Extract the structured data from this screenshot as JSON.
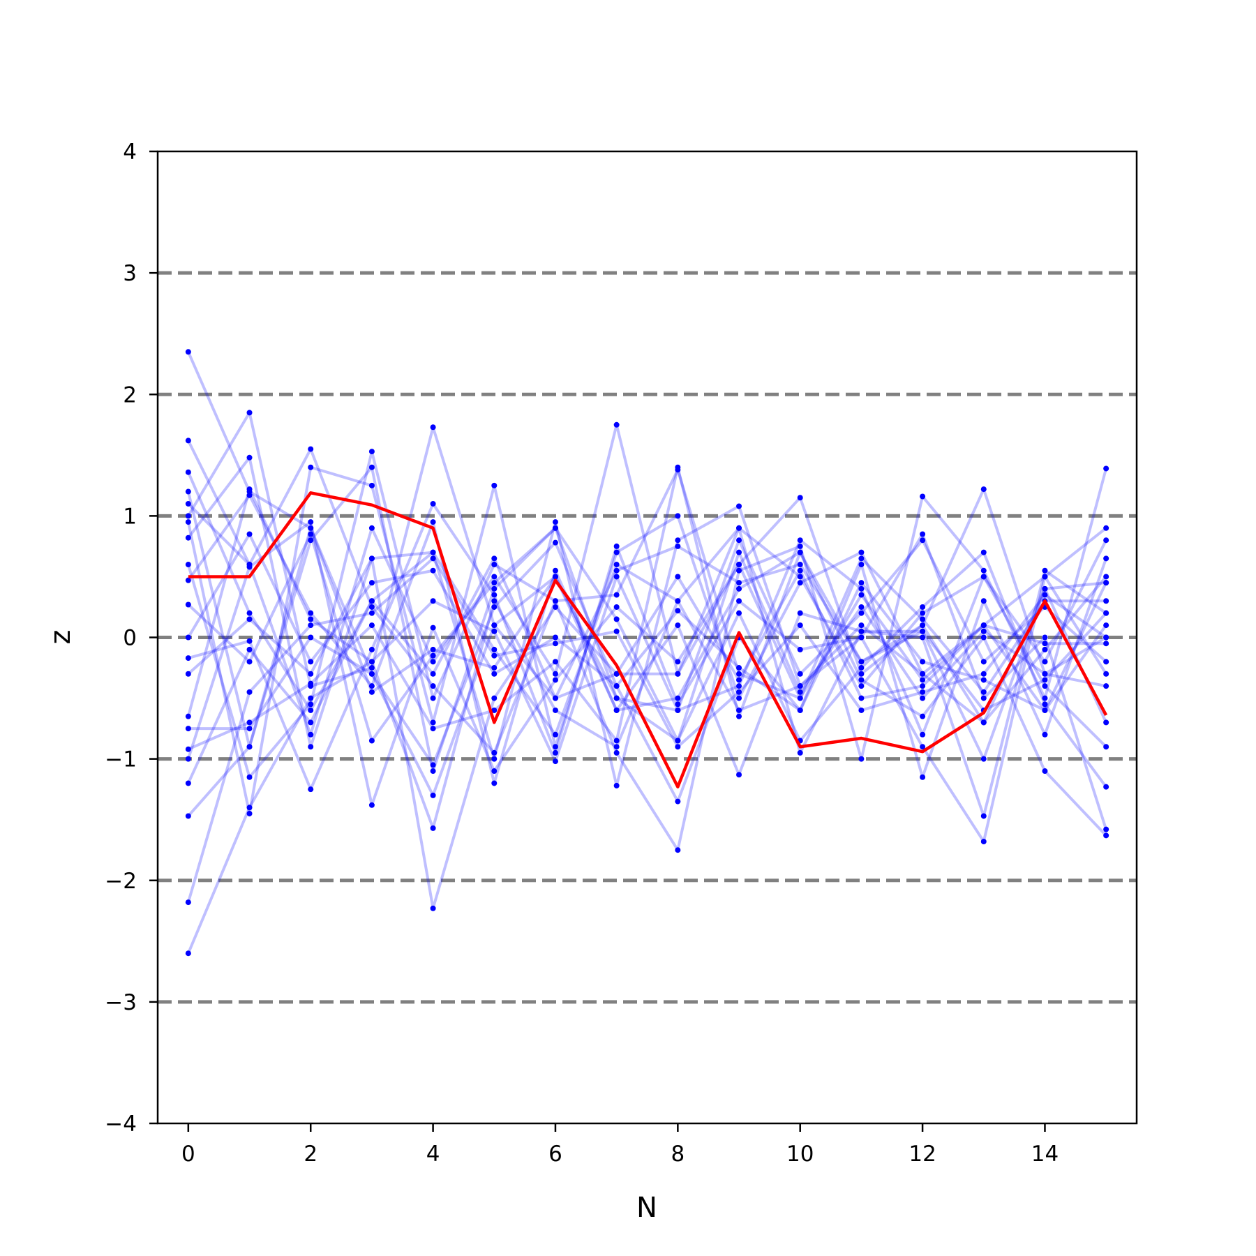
{
  "chart_data": {
    "type": "line",
    "title": "",
    "xlabel": "N",
    "ylabel": "z",
    "xlim": [
      -0.5,
      15.5
    ],
    "ylim": [
      -4,
      4
    ],
    "x_ticks": [
      0,
      2,
      4,
      6,
      8,
      10,
      12,
      14
    ],
    "y_ticks": [
      -4,
      -3,
      -2,
      -1,
      0,
      1,
      2,
      3,
      4
    ],
    "y_tick_labels": [
      "−4",
      "−3",
      "−2",
      "−1",
      "0",
      "1",
      "2",
      "3",
      "4"
    ],
    "reference_lines": [
      -3,
      -2,
      -1,
      0,
      1,
      2,
      3
    ],
    "grid": false,
    "legend": "none",
    "colors": {
      "samples": "#0000ff",
      "highlight": "#ff0000",
      "reference": "#808080"
    },
    "x": [
      0,
      1,
      2,
      3,
      4,
      5,
      6,
      7,
      8,
      9,
      10,
      11,
      12,
      13,
      14,
      15
    ],
    "highlight_series": {
      "values": [
        0.5,
        0.5,
        1.19,
        1.09,
        0.9,
        -0.7,
        0.47,
        -0.23,
        -1.23,
        0.04,
        -0.9,
        -0.83,
        -0.94,
        -0.62,
        0.3,
        -0.64
      ]
    },
    "series": [
      {
        "values": [
          2.35,
          1.2,
          0.9,
          -0.3,
          -1.3,
          0.1,
          0.5,
          -0.6,
          -0.5,
          0.4,
          0.7,
          -0.2,
          0.1,
          -0.7,
          -0.1,
          0.5
        ]
      },
      {
        "values": [
          1.62,
          0.6,
          -0.8,
          0.9,
          -0.2,
          0.5,
          -0.3,
          1.75,
          -0.3,
          0.9,
          0.5,
          -0.4,
          0.2,
          0.5,
          -0.2,
          0.8
        ]
      },
      {
        "values": [
          1.36,
          0.2,
          -0.6,
          0.3,
          0.7,
          -0.1,
          -0.8,
          0.6,
          0.3,
          -0.6,
          -0.4,
          0.1,
          -0.3,
          0.1,
          0.5,
          -0.3
        ]
      },
      {
        "values": [
          1.2,
          -0.9,
          0.8,
          1.4,
          -1.1,
          0.4,
          0.9,
          -0.5,
          -0.6,
          -0.4,
          0.8,
          0.4,
          -0.8,
          0.5,
          -0.4,
          -0.9
        ]
      },
      {
        "values": [
          1.1,
          0.6,
          1.55,
          0.25,
          -0.4,
          -0.95,
          0.3,
          0.35,
          1.38,
          -0.3,
          -0.5,
          0.65,
          0.15,
          -0.45,
          0.3,
          0.3
        ]
      },
      {
        "values": [
          1.0,
          1.85,
          -0.4,
          -0.25,
          1.73,
          0.1,
          -0.5,
          -0.3,
          -0.3,
          0.6,
          1.15,
          -0.3,
          0.1,
          1.22,
          -0.3,
          0.0
        ]
      },
      {
        "values": [
          0.95,
          -1.45,
          1.4,
          1.25,
          -0.7,
          1.25,
          -0.9,
          0.7,
          1.0,
          -0.5,
          0.45,
          0.7,
          -0.3,
          -0.7,
          0.4,
          0.45
        ]
      },
      {
        "values": [
          0.82,
          1.48,
          -0.9,
          0.65,
          0.7,
          -1.0,
          0.95,
          -1.22,
          0.8,
          1.08,
          -0.4,
          0.0,
          0.85,
          -0.5,
          0.0,
          -1.58
        ]
      },
      {
        "values": [
          0.6,
          -1.15,
          -0.55,
          1.53,
          -0.5,
          0.6,
          0.3,
          -0.95,
          -1.75,
          0.55,
          0.75,
          -1.0,
          1.16,
          0.55,
          -0.5,
          1.39
        ]
      },
      {
        "values": [
          0.47,
          1.17,
          0.2,
          -0.4,
          0.95,
          -1.2,
          0.55,
          -0.6,
          0.1,
          -1.13,
          0.2,
          0.05,
          0.0,
          -1.47,
          0.55,
          0.2
        ]
      },
      {
        "values": [
          0.27,
          -0.2,
          0.85,
          -0.85,
          -0.15,
          0.45,
          0.9,
          0.15,
          -0.85,
          0.7,
          -0.45,
          0.25,
          -0.5,
          0.05,
          -0.3,
          -0.4
        ]
      },
      {
        "values": [
          0.0,
          0.85,
          -0.2,
          0.45,
          0.55,
          -0.3,
          0.0,
          -0.4,
          0.22,
          -0.25,
          -0.6,
          0.6,
          -1.15,
          0.3,
          -0.8,
          0.65
        ]
      },
      {
        "values": [
          -0.17,
          -0.03,
          -1.25,
          -0.1,
          1.1,
          0.35,
          -0.95,
          0.75,
          -0.55,
          0.3,
          -0.1,
          0.0,
          -0.9,
          -1.68,
          0.5,
          0.9
        ]
      },
      {
        "values": [
          -0.3,
          0.15,
          -0.3,
          0.65,
          -2.23,
          -0.5,
          0.25,
          -0.3,
          0.5,
          -0.35,
          0.55,
          -0.5,
          -0.4,
          0.1,
          -0.6,
          0.45
        ]
      },
      {
        "values": [
          -0.65,
          1.22,
          0.15,
          -0.2,
          0.3,
          0.05,
          -1.02,
          0.5,
          -0.6,
          0.8,
          -0.3,
          0.2,
          0.8,
          -0.2,
          0.25,
          -0.2
        ]
      },
      {
        "values": [
          -0.75,
          -0.75,
          0.0,
          -0.3,
          -1.05,
          0.25,
          0.78,
          -0.4,
          -1.35,
          0.0,
          -0.6,
          0.45,
          -0.2,
          -0.35,
          -0.6,
          0.1
        ]
      },
      {
        "values": [
          -0.92,
          -0.7,
          -0.38,
          0.1,
          -0.75,
          -0.6,
          -0.2,
          -0.85,
          1.4,
          -0.65,
          0.7,
          -0.35,
          -0.65,
          0.0,
          -1.1,
          -1.63
        ]
      },
      {
        "values": [
          -1.0,
          0.58,
          0.95,
          -1.38,
          0.08,
          -1.1,
          -0.35,
          0.25,
          -0.2,
          0.6,
          -0.5,
          0.35,
          -0.35,
          0.1,
          -0.05,
          -0.05
        ]
      },
      {
        "values": [
          -1.2,
          -0.1,
          -0.7,
          0.3,
          -0.3,
          0.65,
          -0.5,
          0.55,
          0.75,
          0.45,
          0.6,
          -0.2,
          0.05,
          -0.6,
          -0.35,
          0.2
        ]
      },
      {
        "values": [
          -1.47,
          -0.9,
          0.9,
          -0.45,
          -0.1,
          -0.25,
          0.5,
          -0.5,
          -0.85,
          0.2,
          -0.85,
          -0.25,
          0.25,
          0.7,
          -0.55,
          -1.23
        ]
      },
      {
        "values": [
          -2.18,
          -0.45,
          0.1,
          0.2,
          0.65,
          -0.15,
          -0.05,
          0.05,
          -0.9,
          -0.45,
          0.1,
          -0.6,
          -0.45,
          -0.3,
          0.35,
          0.0
        ]
      },
      {
        "values": [
          -2.6,
          -1.4,
          -0.5,
          -0.2,
          -1.57,
          0.3,
          -0.6,
          -0.9,
          0.3,
          0.9,
          -0.95,
          0.05,
          0.05,
          -1.0,
          0.4,
          -0.7
        ]
      }
    ]
  }
}
